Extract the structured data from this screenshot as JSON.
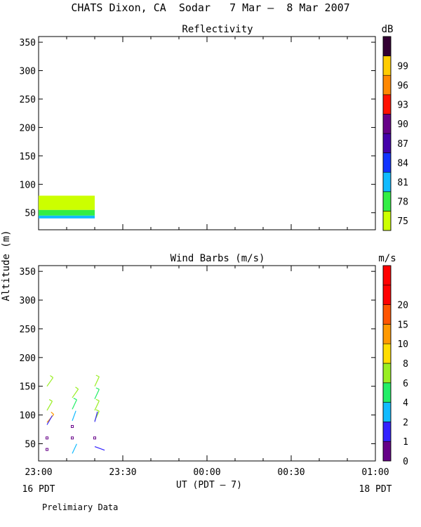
{
  "title": "CHATS Dixon, CA  Sodar   7 Mar –  8 Mar 2007",
  "footer_note": "Prelimiary Data",
  "chart_data": [
    {
      "type": "heatmap",
      "title": "Reflectivity",
      "ylabel": "Altitude (m)",
      "ylim": [
        20,
        360
      ],
      "yticks": [
        50,
        100,
        150,
        200,
        250,
        300,
        350
      ],
      "x_domain": [
        "23:00",
        "01:00"
      ],
      "colorbar": {
        "unit": "dB",
        "labels": [
          "75",
          "78",
          "81",
          "84",
          "87",
          "90",
          "93",
          "96",
          "99"
        ],
        "colors": [
          "#ccff00",
          "#33ee44",
          "#11bbff",
          "#1133ff",
          "#4400aa",
          "#660088",
          "#ff1100",
          "#ff8800",
          "#ffcc00",
          "#330033"
        ]
      },
      "cells": [
        {
          "t0": "23:00",
          "t1": "23:20",
          "z0": 40,
          "z1": 45,
          "value": 81,
          "color": "#11bbff"
        },
        {
          "t0": "23:00",
          "t1": "23:20",
          "z0": 45,
          "z1": 55,
          "value": 78,
          "color": "#33ee44"
        },
        {
          "t0": "23:00",
          "t1": "23:20",
          "z0": 55,
          "z1": 80,
          "value": 75,
          "color": "#ccff00"
        }
      ]
    },
    {
      "type": "scatter",
      "title": "Wind Barbs (m/s)",
      "ylabel": "Altitude (m)",
      "ylim": [
        20,
        360
      ],
      "yticks": [
        50,
        100,
        150,
        200,
        250,
        300,
        350
      ],
      "xlabel": "UT  (PDT – 7)",
      "x_ticks": [
        "23:00",
        "23:30",
        "00:00",
        "00:30",
        "01:00"
      ],
      "date_labels": {
        "start": "16 PDT",
        "end": "18 PDT"
      },
      "colorbar": {
        "unit": "m/s",
        "labels": [
          "0",
          "1",
          "2",
          "4",
          "6",
          "8",
          "10",
          "15",
          "20"
        ],
        "colors": [
          "#660088",
          "#3322ff",
          "#11bbff",
          "#22ee66",
          "#99ee22",
          "#ffdd00",
          "#ff9900",
          "#ff5500",
          "#ff0000",
          "#ff0000"
        ]
      },
      "barbs": [
        {
          "t": "23:03",
          "z": 150,
          "dir": 35,
          "speed": 6,
          "color": "#99ee22"
        },
        {
          "t": "23:03",
          "z": 108,
          "dir": 30,
          "speed": 6,
          "color": "#99ee22"
        },
        {
          "t": "23:03",
          "z": 87,
          "dir": 40,
          "speed": 10,
          "color": "#ff9900"
        },
        {
          "t": "23:03",
          "z": 83,
          "dir": 30,
          "speed": 1,
          "color": "#3322ff"
        },
        {
          "t": "23:03",
          "z": 60,
          "dir": 0,
          "speed": 0.5,
          "color": "#660088"
        },
        {
          "t": "23:03",
          "z": 40,
          "dir": 0,
          "speed": 0.5,
          "color": "#660088"
        },
        {
          "t": "23:12",
          "z": 130,
          "dir": 35,
          "speed": 6,
          "color": "#99ee22"
        },
        {
          "t": "23:12",
          "z": 110,
          "dir": 25,
          "speed": 4,
          "color": "#22ee66"
        },
        {
          "t": "23:12",
          "z": 90,
          "dir": 20,
          "speed": 2,
          "color": "#11bbff"
        },
        {
          "t": "23:12",
          "z": 80,
          "dir": 0,
          "speed": 0.5,
          "color": "#660088"
        },
        {
          "t": "23:12",
          "z": 60,
          "dir": 0,
          "speed": 0.5,
          "color": "#660088"
        },
        {
          "t": "23:12",
          "z": 33,
          "dir": 25,
          "speed": 2,
          "color": "#11bbff"
        },
        {
          "t": "23:20",
          "z": 150,
          "dir": 25,
          "speed": 6,
          "color": "#99ee22"
        },
        {
          "t": "23:20",
          "z": 128,
          "dir": 25,
          "speed": 4,
          "color": "#22ee66"
        },
        {
          "t": "23:20",
          "z": 108,
          "dir": 25,
          "speed": 6,
          "color": "#99ee22"
        },
        {
          "t": "23:20",
          "z": 90,
          "dir": 25,
          "speed": 6,
          "color": "#99ee22"
        },
        {
          "t": "23:20",
          "z": 88,
          "dir": 15,
          "speed": 1,
          "color": "#3322ff"
        },
        {
          "t": "23:20",
          "z": 60,
          "dir": 0,
          "speed": 0.5,
          "color": "#660088"
        },
        {
          "t": "23:20",
          "z": 45,
          "dir": 110,
          "speed": 1,
          "color": "#3322ff"
        }
      ]
    }
  ]
}
